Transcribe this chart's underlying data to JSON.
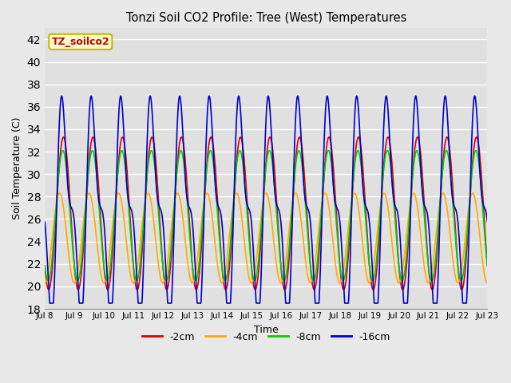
{
  "title": "Tonzi Soil CO2 Profile: Tree (West) Temperatures",
  "xlabel": "Time",
  "ylabel": "Soil Temperature (C)",
  "ylim": [
    18,
    43
  ],
  "yticks": [
    18,
    20,
    22,
    24,
    26,
    28,
    30,
    32,
    34,
    36,
    38,
    40,
    42
  ],
  "legend_label": "TZ_soilco2",
  "legend_box_color": "#ffffcc",
  "legend_box_edge": "#bbbb00",
  "series": [
    {
      "label": "-2cm",
      "color": "#dd0000",
      "linewidth": 1.2
    },
    {
      "label": "-4cm",
      "color": "#ffaa00",
      "linewidth": 1.2
    },
    {
      "label": "-8cm",
      "color": "#00cc00",
      "linewidth": 1.2
    },
    {
      "label": "-16cm",
      "color": "#0000cc",
      "linewidth": 1.2
    }
  ],
  "xtick_labels": [
    "Jul 8",
    "Jul 9",
    "Jul 10",
    "Jul 11",
    "Jul 12",
    "Jul 13",
    "Jul 14",
    "Jul 15",
    "Jul 16",
    "Jul 17",
    "Jul 18",
    "Jul 19",
    "Jul 20",
    "Jul 21",
    "Jul 22",
    "Jul 23"
  ],
  "background_color": "#e8e8e8",
  "plot_bg_color": "#e0e0e0",
  "grid_color": "#ffffff",
  "n_days": 15,
  "pts_per_day": 144
}
